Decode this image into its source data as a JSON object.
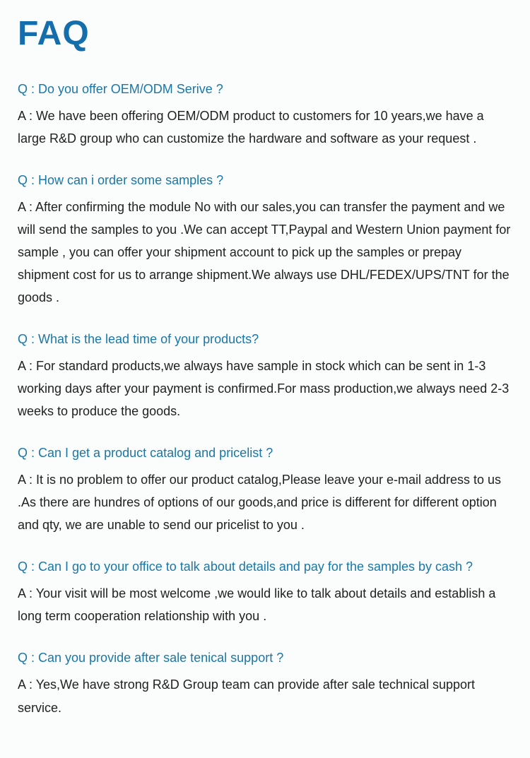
{
  "title": "FAQ",
  "title_color": "#146eab",
  "title_fontsize": 48,
  "question_color": "#1977a8",
  "question_fontsize": 18,
  "answer_color": "#212121",
  "answer_fontsize": 18,
  "background_color": "#fbfcfc",
  "line_height": 1.78,
  "faq": [
    {
      "q": "Q : Do you offer OEM/ODM Serive ?",
      "a": "A : We have been offering OEM/ODM product to customers for 10 years,we have a large R&D group who can customize the hardware and software as your request ."
    },
    {
      "q": "Q : How can i order some samples ?",
      "a": "A : After confirming the module No with our sales,you can transfer the payment and we will send the samples to you .We can accept TT,Paypal and Western Union payment for sample , you can offer your shipment account to pick up the samples or prepay shipment cost for us to arrange shipment.We always use DHL/FEDEX/UPS/TNT for the goods ."
    },
    {
      "q": "Q : What is the lead time of your products?",
      "a": "A : For standard products,we always have sample in stock which can be sent in 1-3 working days after your payment is confirmed.For mass production,we always need 2-3 weeks to produce the goods."
    },
    {
      "q": "Q : Can I get a product catalog and pricelist ?",
      "a": "A : It is no problem to offer our product catalog,Please leave your e-mail address to us .As there are hundres of options of our goods,and price is different for different option and qty, we are unable to send our pricelist to you ."
    },
    {
      "q": "Q : Can I go to your office to talk about details and pay for the samples by cash ?",
      "a": "A : Your visit will be most welcome ,we would like to talk about details and establish a long term cooperation relationship with you ."
    },
    {
      "q": "Q : Can you provide after sale tenical support ?",
      "a": "A : Yes,We have strong R&D Group team can provide after sale technical support service."
    }
  ]
}
